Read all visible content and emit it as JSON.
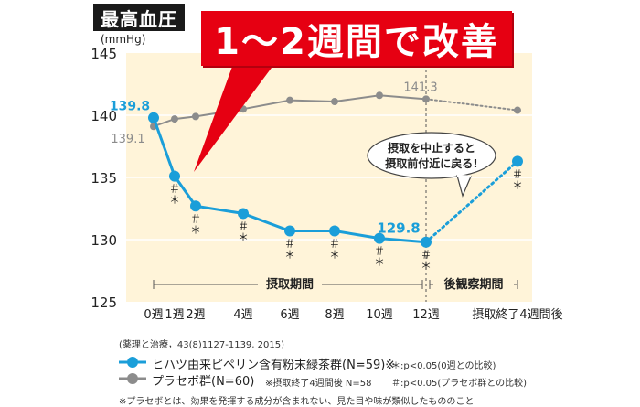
{
  "title_tag": "最高血圧",
  "unit": "(mmHg)",
  "headline": "1～2週間で改善",
  "callout": [
    "摂取を中止すると",
    "摂取前付近に戻る!"
  ],
  "source": "(薬理と治療，43(8)1127-1139, 2015)",
  "periods": {
    "intake": "摂取期間",
    "observation": "後観察期間"
  },
  "legend": {
    "series1": "ヒハツ由来ピペリン含有粉末緑茶群(N=59)※",
    "series2": "プラセボ群(N=60)",
    "note_series2": "※摂取終了4週間後 N=58",
    "note_star": "＊:p<0.05(0週との比較)",
    "note_hash": "＃:p<0.05(プラセボ群との比較)"
  },
  "footnote": "※プラセボとは、効果を発揮する成分が含まれない、見た目や味が類似したもののこと",
  "colors": {
    "series1": "#1a9ed9",
    "series2": "#8c8c8c",
    "accent": "#e60012",
    "plot_bg": "#fff4d9"
  },
  "chart_data": {
    "type": "line",
    "categories": [
      "0週",
      "1週",
      "2週",
      "4週",
      "6週",
      "8週",
      "10週",
      "12週",
      "摂取終了4週間後"
    ],
    "ylim": [
      125,
      145
    ],
    "yticks": [
      125,
      130,
      135,
      140,
      145
    ],
    "series": [
      {
        "name": "ヒハツ由来ピペリン含有粉末緑茶群(N=59)※",
        "values": [
          139.8,
          135.1,
          132.7,
          132.1,
          130.7,
          130.7,
          130.1,
          129.8,
          136.3
        ],
        "color": "#1a9ed9",
        "marks": [
          "",
          "＃ ＊",
          "＃ ＊",
          "＃ ＊",
          "＃ ＊",
          "＃ ＊",
          "＃ ＊",
          "＃ ＊",
          "＃ ＊"
        ]
      },
      {
        "name": "プラセボ群(N=60)",
        "values": [
          139.1,
          139.7,
          139.9,
          140.5,
          141.2,
          141.1,
          141.6,
          141.3,
          140.4
        ],
        "color": "#8c8c8c"
      }
    ],
    "data_labels": [
      {
        "series": 0,
        "index": 0,
        "text": "139.8"
      },
      {
        "series": 1,
        "index": 0,
        "text": "139.1"
      },
      {
        "series": 1,
        "index": 7,
        "text": "141.3"
      },
      {
        "series": 0,
        "index": 7,
        "text": "129.8"
      }
    ],
    "grid": true
  }
}
